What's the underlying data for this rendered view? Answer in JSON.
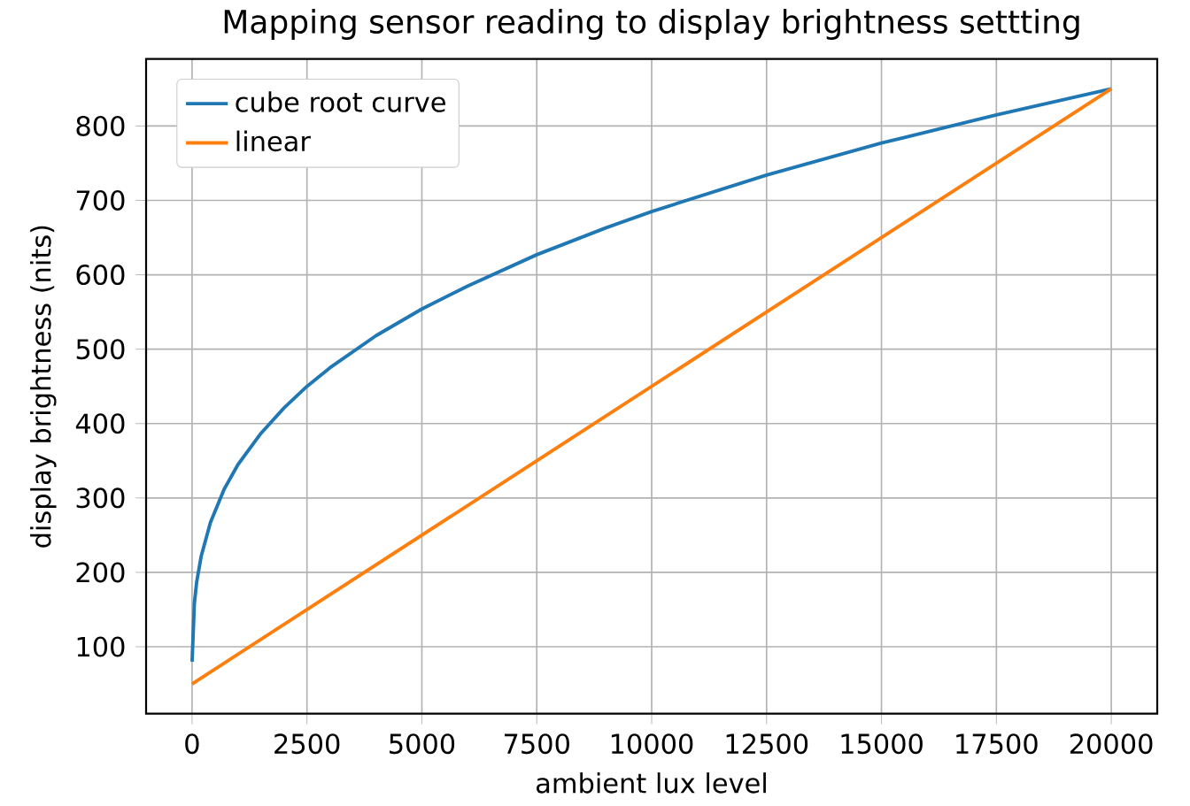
{
  "chart_data": {
    "type": "line",
    "title": "Mapping sensor reading to display brightness settting",
    "xlabel": "ambient lux level",
    "ylabel": "display brightness (nits)",
    "series": [
      {
        "name": "cube root curve",
        "color": "#1f77b4",
        "x": [
          1,
          50,
          100,
          200,
          400,
          700,
          1000,
          1500,
          2000,
          2500,
          3000,
          4000,
          5000,
          6000,
          7500,
          9000,
          10000,
          12500,
          15000,
          17500,
          20000
        ],
        "values": [
          80,
          158,
          187,
          222,
          267,
          312,
          345,
          387,
          421,
          450,
          475,
          518,
          554,
          585,
          627,
          663,
          685,
          734,
          777,
          815,
          850
        ]
      },
      {
        "name": "linear",
        "color": "#ff7f0e",
        "x": [
          0,
          20000
        ],
        "values": [
          50,
          850
        ]
      }
    ],
    "xlim": [
      -1000,
      21000
    ],
    "ylim": [
      10,
      890
    ],
    "xticks": [
      0,
      2500,
      5000,
      7500,
      10000,
      12500,
      15000,
      17500,
      20000
    ],
    "yticks": [
      100,
      200,
      300,
      400,
      500,
      600,
      700,
      800
    ],
    "grid": true,
    "legend": "top left",
    "marker": "none",
    "line_style": "solid"
  }
}
